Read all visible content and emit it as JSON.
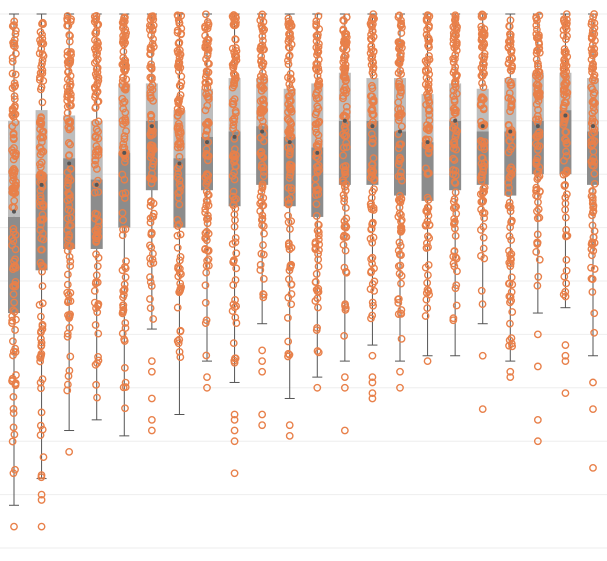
{
  "chart_data": {
    "type": "box",
    "categories": [
      "",
      "",
      "",
      "",
      "",
      "",
      "",
      "",
      "",
      "",
      "",
      "",
      "",
      "",
      "",
      "",
      "",
      "",
      "",
      "",
      "",
      ""
    ],
    "title": "",
    "xlabel": "",
    "ylabel": "",
    "ylim": [
      0,
      100
    ],
    "grid": true,
    "legend": "none",
    "colors": {
      "point": "#e8804a",
      "box_lower": "#8c8c8c",
      "box_upper": "#bdbdbd",
      "whisker": "#555555",
      "grid": "#eeeeee"
    },
    "series": [
      {
        "q1": 44,
        "median": 62,
        "q3": 80,
        "mean": 63,
        "whisker_low": 8,
        "whisker_high": 100,
        "min": 0,
        "max": 100,
        "outliers": [
          4
        ]
      },
      {
        "q1": 52,
        "median": 70,
        "q3": 82,
        "mean": 68,
        "whisker_low": 13,
        "whisker_high": 100,
        "min": 0,
        "max": 100,
        "outliers": [
          4,
          9,
          10
        ]
      },
      {
        "q1": 56,
        "median": 73,
        "q3": 81,
        "mean": 72,
        "whisker_low": 22,
        "whisker_high": 100,
        "min": 0,
        "max": 100,
        "outliers": [
          18
        ]
      },
      {
        "q1": 56,
        "median": 69,
        "q3": 80,
        "mean": 68,
        "whisker_low": 24,
        "whisker_high": 100,
        "min": 0,
        "max": 100,
        "outliers": []
      },
      {
        "q1": 60,
        "median": 74,
        "q3": 87,
        "mean": 74,
        "whisker_low": 21,
        "whisker_high": 100,
        "min": 0,
        "max": 100,
        "outliers": []
      },
      {
        "q1": 67,
        "median": 80,
        "q3": 87,
        "mean": 79,
        "whisker_low": 41,
        "whisker_high": 100,
        "min": 0,
        "max": 100,
        "outliers": [
          35,
          33,
          28,
          24,
          22
        ]
      },
      {
        "q1": 60,
        "median": 73,
        "q3": 82,
        "mean": 72,
        "whisker_low": 25,
        "whisker_high": 100,
        "min": 0,
        "max": 100,
        "outliers": []
      },
      {
        "q1": 67,
        "median": 77,
        "q3": 86,
        "mean": 76,
        "whisker_low": 35,
        "whisker_high": 100,
        "min": 0,
        "max": 100,
        "outliers": [
          32,
          30
        ]
      },
      {
        "q1": 64,
        "median": 78,
        "q3": 88,
        "mean": 77,
        "whisker_low": 31,
        "whisker_high": 100,
        "min": 0,
        "max": 100,
        "outliers": [
          22,
          24,
          25,
          20,
          14
        ]
      },
      {
        "q1": 68,
        "median": 79,
        "q3": 88,
        "mean": 78,
        "whisker_low": 42,
        "whisker_high": 100,
        "min": 0,
        "max": 100,
        "outliers": [
          37,
          35,
          33,
          25,
          23
        ]
      },
      {
        "q1": 64,
        "median": 77,
        "q3": 86,
        "mean": 76,
        "whisker_low": 28,
        "whisker_high": 100,
        "min": 0,
        "max": 100,
        "outliers": [
          23,
          21
        ]
      },
      {
        "q1": 62,
        "median": 75,
        "q3": 87,
        "mean": 74,
        "whisker_low": 32,
        "whisker_high": 100,
        "min": 0,
        "max": 100,
        "outliers": [
          30
        ]
      },
      {
        "q1": 68,
        "median": 80,
        "q3": 89,
        "mean": 80,
        "whisker_low": 35,
        "whisker_high": 100,
        "min": 0,
        "max": 100,
        "outliers": [
          32,
          30,
          22
        ]
      },
      {
        "q1": 68,
        "median": 80,
        "q3": 88,
        "mean": 79,
        "whisker_low": 38,
        "whisker_high": 100,
        "min": 0,
        "max": 100,
        "outliers": [
          36,
          32,
          31,
          29,
          28
        ]
      },
      {
        "q1": 66,
        "median": 78,
        "q3": 88,
        "mean": 78,
        "whisker_low": 35,
        "whisker_high": 100,
        "min": 0,
        "max": 100,
        "outliers": [
          33,
          30
        ]
      },
      {
        "q1": 65,
        "median": 76,
        "q3": 85,
        "mean": 76,
        "whisker_low": 36,
        "whisker_high": 100,
        "min": 0,
        "max": 100,
        "outliers": [
          35
        ]
      },
      {
        "q1": 67,
        "median": 80,
        "q3": 87,
        "mean": 80,
        "whisker_low": 36,
        "whisker_high": 100,
        "min": 0,
        "max": 100,
        "outliers": []
      },
      {
        "q1": 68,
        "median": 78,
        "q3": 86,
        "mean": 79,
        "whisker_low": 42,
        "whisker_high": 100,
        "min": 0,
        "max": 100,
        "outliers": [
          36,
          26
        ]
      },
      {
        "q1": 66,
        "median": 78,
        "q3": 88,
        "mean": 78,
        "whisker_low": 35,
        "whisker_high": 100,
        "min": 0,
        "max": 100,
        "outliers": [
          33,
          32
        ]
      },
      {
        "q1": 70,
        "median": 80,
        "q3": 89,
        "mean": 79,
        "whisker_low": 44,
        "whisker_high": 100,
        "min": 0,
        "max": 100,
        "outliers": [
          40,
          34,
          24,
          20
        ]
      },
      {
        "q1": 70,
        "median": 82,
        "q3": 89,
        "mean": 81,
        "whisker_low": 45,
        "whisker_high": 100,
        "min": 0,
        "max": 100,
        "outliers": [
          38,
          36,
          35,
          29
        ]
      },
      {
        "q1": 68,
        "median": 78,
        "q3": 88,
        "mean": 79,
        "whisker_low": 36,
        "whisker_high": 100,
        "min": 0,
        "max": 100,
        "outliers": [
          31,
          26,
          15
        ]
      }
    ]
  }
}
